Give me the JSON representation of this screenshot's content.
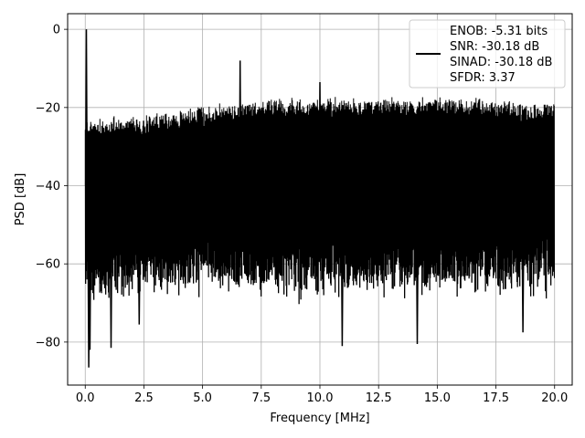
{
  "chart_data": {
    "type": "line",
    "title": "",
    "xlabel": "Frequency [MHz]",
    "ylabel": "PSD [dB]",
    "xlim": [
      -0.75,
      20.75
    ],
    "ylim": [
      -91,
      4
    ],
    "xticks": [
      0.0,
      2.5,
      5.0,
      7.5,
      10.0,
      12.5,
      15.0,
      17.5,
      20.0
    ],
    "xtick_labels": [
      "0.0",
      "2.5",
      "5.0",
      "7.5",
      "10.0",
      "12.5",
      "15.0",
      "17.5",
      "20.0"
    ],
    "yticks": [
      0,
      -20,
      -40,
      -60,
      -80
    ],
    "ytick_labels": [
      "0",
      "−20",
      "−40",
      "−60",
      "−80"
    ],
    "grid": true,
    "legend_position": "upper-right",
    "series": [
      {
        "color": "#000000",
        "description": "dense noise spectrum: upper envelope rising from about -22 dB near 0 MHz to about -17 dB at 10 MHz and -18 dB at 20 MHz; lower envelope mostly -60 to -68 dB",
        "envelope_x": [
          0.0,
          2.5,
          5.0,
          7.5,
          10.0,
          12.5,
          15.0,
          17.5,
          20.0
        ],
        "envelope_upper": [
          -22.5,
          -21.5,
          -19.5,
          -17.5,
          -17.0,
          -17.0,
          -17.0,
          -17.5,
          -18.5
        ],
        "envelope_lower": [
          -68.0,
          -66.0,
          -66.0,
          -66.0,
          -66.0,
          -66.0,
          -66.0,
          -66.0,
          -64.0
        ],
        "peaks": [
          {
            "x": 0.05,
            "y": 0.0
          },
          {
            "x": 6.6,
            "y": -8.0
          },
          {
            "x": 10.0,
            "y": -13.5
          },
          {
            "x": 0.15,
            "y": -86.5
          },
          {
            "x": 0.2,
            "y": -82.0
          },
          {
            "x": 1.1,
            "y": -81.5
          },
          {
            "x": 2.3,
            "y": -75.5
          },
          {
            "x": 10.95,
            "y": -81.0
          },
          {
            "x": 14.15,
            "y": -80.5
          },
          {
            "x": 18.65,
            "y": -77.5
          }
        ],
        "x_range": [
          0.0,
          20.0
        ]
      }
    ],
    "legend": {
      "lines": [
        "ENOB: -5.31 bits",
        "SNR: -30.18 dB",
        "SINAD: -30.18 dB",
        "SFDR: 3.37"
      ]
    }
  }
}
